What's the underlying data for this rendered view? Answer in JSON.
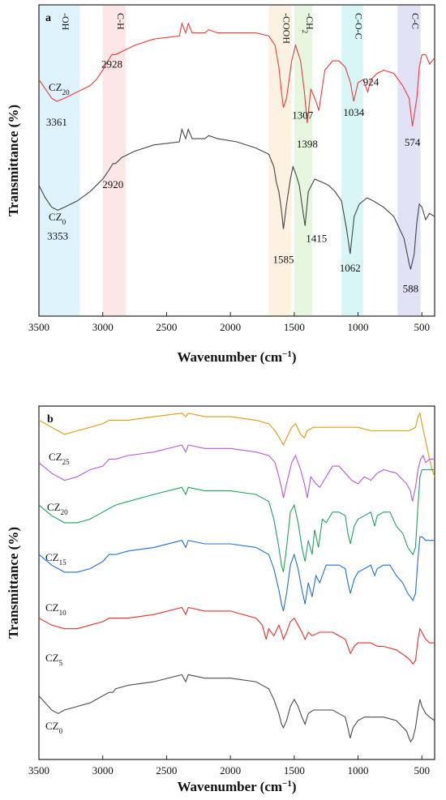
{
  "chart_data": [
    {
      "type": "line",
      "panel": "a",
      "xlabel": "Wavenumber (cm",
      "xlabel_sup": "−1",
      "xlabel_close": ")",
      "ylabel": "Transmittance (%)",
      "xlim": [
        3500,
        400
      ],
      "xticks": [
        3500,
        3000,
        2500,
        2000,
        1500,
        1000,
        500
      ],
      "x_reversed": true,
      "y_ticks_shown": false,
      "grid": false,
      "bands": [
        {
          "label": "-OH",
          "color": "#dff3fd",
          "from": 3500,
          "to": 3180
        },
        {
          "label": "C-H",
          "color": "#fde6e6",
          "from": 3000,
          "to": 2820
        },
        {
          "label": "-COOH",
          "color": "#fdf2e2",
          "from": 1700,
          "to": 1520
        },
        {
          "label": "-CH",
          "sub": "2",
          "color": "#e6f6df",
          "from": 1500,
          "to": 1360
        },
        {
          "label": "C-O-C",
          "color": "#d9f6f6",
          "from": 1130,
          "to": 960
        },
        {
          "label": "C-C",
          "color": "#e2e2f7",
          "from": 690,
          "to": 510
        }
      ],
      "series": [
        {
          "name": "CZ",
          "sub": "20",
          "color": "#ef3a3a",
          "x": [
            3500,
            3450,
            3400,
            3361,
            3300,
            3200,
            3100,
            3050,
            3000,
            2960,
            2928,
            2900,
            2850,
            2750,
            2600,
            2400,
            2380,
            2350,
            2330,
            2300,
            2200,
            2170,
            2100,
            1950,
            1800,
            1700,
            1650,
            1620,
            1600,
            1585,
            1560,
            1520,
            1490,
            1450,
            1420,
            1398,
            1370,
            1330,
            1307,
            1260,
            1200,
            1150,
            1100,
            1060,
            1034,
            1000,
            960,
            924,
            900,
            850,
            800,
            720,
            650,
            600,
            574,
            540,
            520,
            500,
            470,
            440,
            400
          ],
          "y": [
            76,
            73,
            70,
            69,
            70,
            72,
            74,
            76,
            79,
            82,
            84,
            84,
            85,
            87,
            89,
            90,
            94,
            91,
            94,
            91,
            91,
            92,
            91,
            91,
            91,
            90,
            87,
            80,
            72,
            67,
            70,
            82,
            87,
            82,
            72,
            62,
            73,
            69,
            66,
            79,
            82,
            82,
            80,
            75,
            69,
            75,
            76,
            72,
            76,
            78,
            79,
            78,
            74,
            70,
            61,
            70,
            80,
            84,
            84,
            81,
            83
          ]
        },
        {
          "name": "CZ",
          "sub": "0",
          "color": "#444444",
          "x": [
            3500,
            3450,
            3400,
            3353,
            3300,
            3200,
            3100,
            3050,
            3000,
            2950,
            2920,
            2900,
            2850,
            2750,
            2600,
            2400,
            2380,
            2350,
            2330,
            2300,
            2200,
            2170,
            2100,
            1950,
            1800,
            1700,
            1660,
            1640,
            1620,
            1600,
            1585,
            1560,
            1530,
            1510,
            1490,
            1460,
            1440,
            1415,
            1390,
            1340,
            1280,
            1230,
            1180,
            1130,
            1090,
            1062,
            1030,
            990,
            930,
            880,
            800,
            720,
            640,
            600,
            588,
            560,
            540,
            520,
            500,
            470,
            440,
            400
          ],
          "y": [
            42,
            38,
            35,
            34,
            35,
            37,
            40,
            42,
            44,
            47,
            49,
            49,
            51,
            53,
            55,
            56,
            60,
            57,
            60,
            57,
            57,
            58,
            57,
            56,
            54,
            52,
            48,
            43,
            40,
            34,
            28,
            36,
            44,
            48,
            46,
            42,
            36,
            29,
            40,
            44,
            43,
            42,
            40,
            37,
            28,
            20,
            32,
            36,
            38,
            37,
            35,
            32,
            25,
            17,
            15,
            20,
            30,
            36,
            35,
            31,
            33,
            32
          ]
        }
      ],
      "peak_labels": [
        {
          "text": "3361",
          "series": 0,
          "x": 3361
        },
        {
          "text": "2928",
          "series": 0,
          "x": 2928
        },
        {
          "text": "1398",
          "series": 0,
          "x": 1398
        },
        {
          "text": "1307",
          "series": 0,
          "x": 1307
        },
        {
          "text": "1034",
          "series": 0,
          "x": 1034
        },
        {
          "text": "924",
          "series": 0,
          "x": 924
        },
        {
          "text": "574",
          "series": 0,
          "x": 574
        },
        {
          "text": "3353",
          "series": 1,
          "x": 3353
        },
        {
          "text": "2920",
          "series": 1,
          "x": 2920
        },
        {
          "text": "1585",
          "series": 1,
          "x": 1585
        },
        {
          "text": "1415",
          "series": 1,
          "x": 1415
        },
        {
          "text": "1062",
          "series": 1,
          "x": 1062
        },
        {
          "text": "588",
          "series": 1,
          "x": 588
        }
      ]
    },
    {
      "type": "line",
      "panel": "b",
      "xlabel": "Wavenumber (cm",
      "xlabel_sup": "−1",
      "xlabel_close": ")",
      "ylabel": "Transmittance (%)",
      "xlim": [
        3500,
        400
      ],
      "xticks": [
        3500,
        3000,
        2500,
        2000,
        1500,
        1000,
        500
      ],
      "x_reversed": true,
      "y_ticks_shown": false,
      "grid": false,
      "series": [
        {
          "name": "CZ",
          "sub": "25",
          "color": "#e09a0c",
          "x": [
            3500,
            3400,
            3300,
            3200,
            3100,
            3000,
            2950,
            2900,
            2800,
            2600,
            2380,
            2350,
            2330,
            2200,
            2000,
            1800,
            1700,
            1650,
            1600,
            1585,
            1560,
            1520,
            1490,
            1450,
            1420,
            1400,
            1350,
            1300,
            1200,
            1100,
            1000,
            900,
            800,
            700,
            600,
            550,
            530,
            515,
            500,
            470,
            440,
            420,
            400
          ],
          "y": [
            96,
            94,
            92,
            93,
            94,
            95,
            96,
            96,
            96,
            97,
            98,
            97,
            98,
            97,
            97,
            96,
            95,
            93,
            90,
            89,
            91,
            94,
            95,
            92,
            91,
            93,
            94,
            94,
            94,
            94,
            94,
            93,
            93,
            93,
            93,
            94,
            97,
            98,
            95,
            90,
            85,
            82,
            80
          ]
        },
        {
          "name": "CZ",
          "sub": "20",
          "color": "#b35ad8",
          "x": [
            3500,
            3400,
            3300,
            3200,
            3100,
            3000,
            2950,
            2900,
            2800,
            2600,
            2380,
            2350,
            2330,
            2200,
            2000,
            1800,
            1700,
            1650,
            1620,
            1600,
            1585,
            1560,
            1520,
            1490,
            1450,
            1420,
            1398,
            1370,
            1330,
            1300,
            1200,
            1150,
            1100,
            1050,
            1000,
            950,
            900,
            850,
            800,
            700,
            620,
            590,
            574,
            550,
            530,
            510,
            490,
            470,
            440,
            400
          ],
          "y": [
            84,
            81,
            79,
            80,
            82,
            83,
            85,
            85,
            86,
            87,
            89,
            87,
            89,
            88,
            88,
            87,
            86,
            84,
            80,
            77,
            74,
            78,
            84,
            86,
            82,
            78,
            74,
            80,
            78,
            77,
            83,
            83,
            81,
            79,
            78,
            80,
            79,
            81,
            82,
            81,
            78,
            76,
            73,
            77,
            82,
            85,
            86,
            84,
            85,
            85
          ]
        },
        {
          "name": "CZ",
          "sub": "15",
          "color": "#1fa35b",
          "x": [
            3500,
            3400,
            3300,
            3200,
            3100,
            3000,
            2950,
            2900,
            2800,
            2600,
            2380,
            2350,
            2330,
            2200,
            2000,
            1800,
            1700,
            1660,
            1620,
            1600,
            1585,
            1560,
            1530,
            1500,
            1470,
            1440,
            1415,
            1390,
            1360,
            1340,
            1310,
            1280,
            1250,
            1200,
            1150,
            1100,
            1080,
            1060,
            1030,
            1000,
            950,
            900,
            870,
            850,
            800,
            750,
            700,
            650,
            610,
            590,
            570,
            550,
            530,
            515,
            500,
            470,
            440,
            400
          ],
          "y": [
            72,
            69,
            67,
            67,
            68,
            70,
            71,
            72,
            73,
            75,
            77,
            75,
            77,
            76,
            76,
            75,
            73,
            68,
            60,
            55,
            53,
            60,
            70,
            72,
            67,
            60,
            56,
            62,
            58,
            65,
            60,
            68,
            67,
            70,
            70,
            69,
            64,
            61,
            66,
            68,
            69,
            70,
            66,
            69,
            70,
            70,
            66,
            64,
            60,
            59,
            58,
            60,
            72,
            80,
            82,
            82,
            82,
            82
          ]
        },
        {
          "name": "CZ",
          "sub": "10",
          "color": "#1f6fd0",
          "x": [
            3500,
            3400,
            3300,
            3200,
            3100,
            3000,
            2950,
            2900,
            2800,
            2600,
            2380,
            2350,
            2330,
            2200,
            2000,
            1800,
            1700,
            1660,
            1620,
            1600,
            1585,
            1560,
            1530,
            1500,
            1470,
            1440,
            1415,
            1390,
            1360,
            1330,
            1300,
            1250,
            1200,
            1150,
            1100,
            1080,
            1060,
            1030,
            1000,
            950,
            900,
            870,
            850,
            800,
            750,
            700,
            650,
            610,
            590,
            570,
            550,
            530,
            515,
            500,
            470,
            440,
            400
          ],
          "y": [
            58,
            55,
            53,
            53,
            54,
            56,
            58,
            58,
            59,
            60,
            62,
            60,
            62,
            61,
            61,
            60,
            58,
            54,
            48,
            44,
            42,
            47,
            55,
            58,
            54,
            48,
            44,
            50,
            46,
            52,
            50,
            55,
            55,
            55,
            54,
            50,
            47,
            51,
            53,
            54,
            55,
            52,
            54,
            55,
            55,
            52,
            50,
            47,
            46,
            45,
            47,
            57,
            63,
            63,
            62,
            62,
            62
          ]
        },
        {
          "name": "CZ",
          "sub": "5",
          "color": "#ea2d2d",
          "x": [
            3500,
            3400,
            3300,
            3200,
            3100,
            3000,
            2950,
            2900,
            2800,
            2600,
            2380,
            2350,
            2330,
            2200,
            2000,
            1800,
            1750,
            1720,
            1700,
            1660,
            1620,
            1600,
            1585,
            1560,
            1530,
            1500,
            1470,
            1440,
            1415,
            1390,
            1360,
            1300,
            1250,
            1200,
            1150,
            1100,
            1080,
            1060,
            1030,
            1000,
            950,
            900,
            850,
            800,
            700,
            620,
            590,
            570,
            550,
            530,
            515,
            500,
            470,
            440,
            400
          ],
          "y": [
            40,
            38,
            37,
            37,
            38,
            39,
            40,
            40,
            40,
            41,
            43,
            41,
            43,
            42,
            42,
            40,
            38,
            34,
            37,
            35,
            38,
            36,
            34,
            36,
            39,
            40,
            38,
            36,
            34,
            36,
            35,
            36,
            36,
            36,
            35,
            34,
            32,
            30,
            32,
            33,
            33,
            33,
            32,
            32,
            31,
            29,
            28,
            27,
            28,
            34,
            37,
            36,
            34,
            33,
            33
          ]
        },
        {
          "name": "CZ",
          "sub": "0",
          "color": "#4a4a4a",
          "x": [
            3500,
            3450,
            3400,
            3350,
            3300,
            3200,
            3100,
            3000,
            2950,
            2920,
            2900,
            2800,
            2600,
            2380,
            2350,
            2330,
            2200,
            2000,
            1800,
            1700,
            1660,
            1620,
            1600,
            1585,
            1560,
            1530,
            1500,
            1470,
            1440,
            1415,
            1390,
            1350,
            1300,
            1250,
            1200,
            1150,
            1100,
            1080,
            1062,
            1040,
            1000,
            950,
            900,
            850,
            800,
            700,
            620,
            600,
            588,
            570,
            550,
            530,
            515,
            500,
            470,
            440,
            400
          ],
          "y": [
            18,
            16,
            14,
            13,
            14,
            15,
            16,
            18,
            19,
            19,
            20,
            21,
            22,
            24,
            22,
            24,
            23,
            23,
            22,
            20,
            17,
            13,
            10,
            9,
            11,
            15,
            17,
            15,
            12,
            10,
            13,
            14,
            14,
            14,
            14,
            13,
            12,
            9,
            6,
            9,
            11,
            12,
            12,
            12,
            12,
            11,
            8,
            6,
            5,
            6,
            9,
            14,
            17,
            15,
            13,
            12,
            11
          ]
        }
      ]
    }
  ]
}
